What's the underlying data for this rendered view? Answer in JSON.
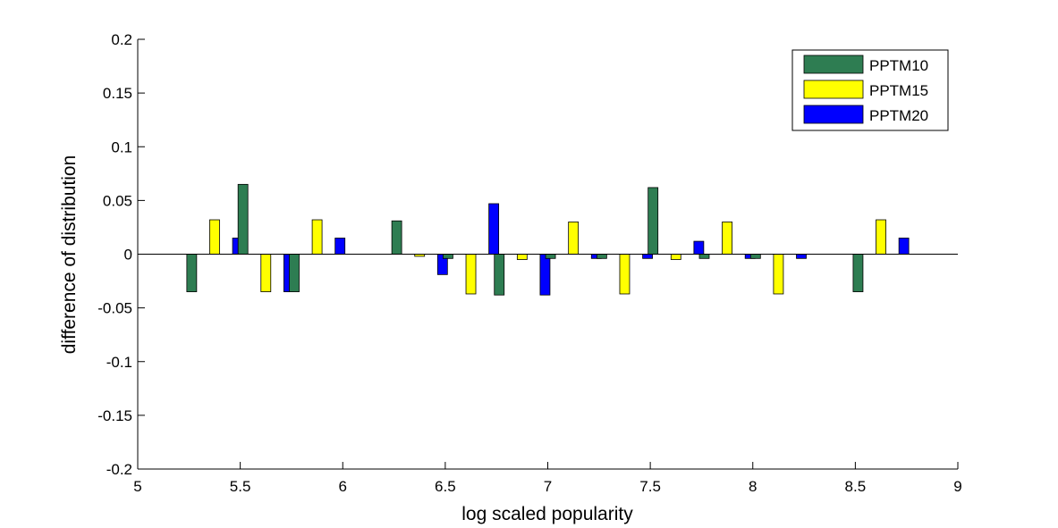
{
  "chart_data": {
    "type": "bar",
    "title": "",
    "xlabel": "log scaled popularity",
    "ylabel": "difference of distribution",
    "xlim": [
      5,
      9
    ],
    "ylim": [
      -0.2,
      0.2
    ],
    "xticks": [
      "5",
      "5.5",
      "6",
      "6.5",
      "7",
      "7.5",
      "8",
      "8.5",
      "9"
    ],
    "yticks": [
      "0.2",
      "0.15",
      "0.1",
      "0.05",
      "0",
      "-0.05",
      "-0.1",
      "-0.15",
      "-0.2"
    ],
    "grid": false,
    "legend_position": "top-right",
    "x": [
      5.375,
      5.625,
      5.875,
      6.375,
      6.625,
      6.875,
      7.125,
      7.375,
      7.625,
      7.875,
      8.125,
      8.625
    ],
    "series": [
      {
        "name": "PPTM10",
        "color": "#2e7d52",
        "values": [
          -0.035,
          0.065,
          -0.035,
          0.031,
          -0.004,
          -0.038,
          -0.004,
          -0.004,
          0.062,
          -0.004,
          -0.004,
          -0.035
        ]
      },
      {
        "name": "PPTM15",
        "color": "#ffff00",
        "values": [
          0.032,
          -0.035,
          0.032,
          -0.002,
          -0.037,
          -0.005,
          0.03,
          -0.037,
          -0.005,
          0.03,
          -0.037,
          0.032
        ]
      },
      {
        "name": "PPTM20",
        "color": "#0000ff",
        "values": [
          0.015,
          -0.035,
          0.015,
          -0.019,
          0.047,
          -0.038,
          -0.004,
          -0.004,
          0.012,
          -0.004,
          -0.004,
          0.015
        ]
      }
    ]
  }
}
